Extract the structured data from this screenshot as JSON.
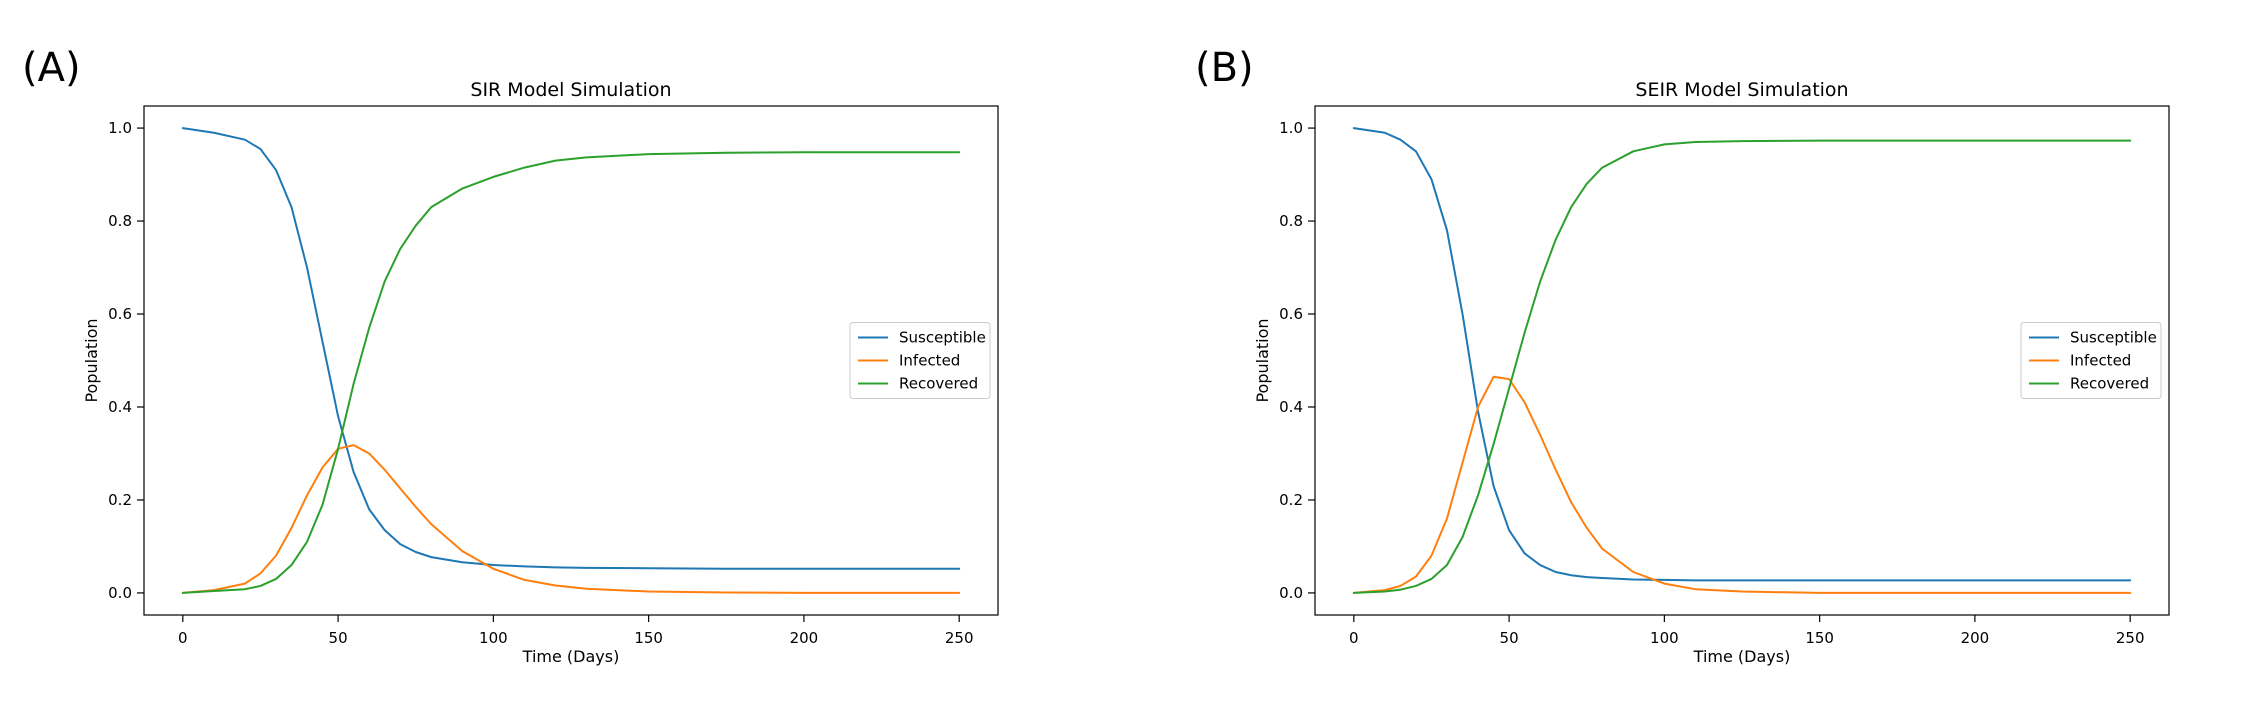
{
  "panels": [
    "(A)",
    "(B)"
  ],
  "chart_data": [
    {
      "type": "line",
      "title": "SIR Model Simulation",
      "xlabel": "Time (Days)",
      "ylabel": "Population",
      "xlim": [
        -12.5,
        262.5
      ],
      "ylim": [
        -0.0475,
        1.0475
      ],
      "xticks": [
        0,
        50,
        100,
        150,
        200,
        250
      ],
      "yticks": [
        0.0,
        0.2,
        0.4,
        0.6,
        0.8,
        1.0
      ],
      "xtick_labels": [
        "0",
        "50",
        "100",
        "150",
        "200",
        "250"
      ],
      "ytick_labels": [
        "0.0",
        "0.2",
        "0.4",
        "0.6",
        "0.8",
        "1.0"
      ],
      "grid": false,
      "legend_position": "center-right",
      "x": [
        0,
        10,
        20,
        25,
        30,
        35,
        40,
        45,
        50,
        55,
        60,
        65,
        70,
        75,
        80,
        90,
        100,
        110,
        120,
        130,
        150,
        175,
        200,
        250
      ],
      "series": [
        {
          "name": "Susceptible",
          "color": "#1f77b4",
          "values": [
            1.0,
            0.99,
            0.975,
            0.955,
            0.91,
            0.83,
            0.7,
            0.54,
            0.38,
            0.26,
            0.18,
            0.135,
            0.105,
            0.088,
            0.077,
            0.066,
            0.06,
            0.057,
            0.055,
            0.054,
            0.053,
            0.052,
            0.052,
            0.052
          ]
        },
        {
          "name": "Infected",
          "color": "#ff7f0e",
          "values": [
            0.0,
            0.006,
            0.02,
            0.042,
            0.08,
            0.14,
            0.21,
            0.27,
            0.31,
            0.318,
            0.3,
            0.265,
            0.225,
            0.185,
            0.148,
            0.09,
            0.052,
            0.028,
            0.016,
            0.009,
            0.003,
            0.001,
            0.0,
            0.0
          ]
        },
        {
          "name": "Recovered",
          "color": "#2ca02c",
          "values": [
            0.0,
            0.004,
            0.008,
            0.015,
            0.03,
            0.06,
            0.11,
            0.19,
            0.31,
            0.45,
            0.57,
            0.67,
            0.74,
            0.79,
            0.83,
            0.87,
            0.895,
            0.915,
            0.93,
            0.937,
            0.944,
            0.947,
            0.948,
            0.948
          ]
        }
      ]
    },
    {
      "type": "line",
      "title": "SEIR Model Simulation",
      "xlabel": "Time (Days)",
      "ylabel": "Population",
      "xlim": [
        -12.5,
        262.5
      ],
      "ylim": [
        -0.0475,
        1.0475
      ],
      "xticks": [
        0,
        50,
        100,
        150,
        200,
        250
      ],
      "yticks": [
        0.0,
        0.2,
        0.4,
        0.6,
        0.8,
        1.0
      ],
      "xtick_labels": [
        "0",
        "50",
        "100",
        "150",
        "200",
        "250"
      ],
      "ytick_labels": [
        "0.0",
        "0.2",
        "0.4",
        "0.6",
        "0.8",
        "1.0"
      ],
      "grid": false,
      "legend_position": "center-right",
      "x": [
        0,
        10,
        15,
        20,
        25,
        30,
        35,
        40,
        45,
        50,
        55,
        60,
        65,
        70,
        75,
        80,
        90,
        100,
        110,
        125,
        150,
        200,
        250
      ],
      "series": [
        {
          "name": "Susceptible",
          "color": "#1f77b4",
          "values": [
            1.0,
            0.99,
            0.975,
            0.95,
            0.89,
            0.78,
            0.6,
            0.39,
            0.23,
            0.135,
            0.085,
            0.06,
            0.045,
            0.038,
            0.034,
            0.032,
            0.029,
            0.028,
            0.027,
            0.027,
            0.027,
            0.027,
            0.027
          ]
        },
        {
          "name": "Infected",
          "color": "#ff7f0e",
          "values": [
            0.0,
            0.006,
            0.015,
            0.035,
            0.08,
            0.16,
            0.28,
            0.4,
            0.465,
            0.46,
            0.41,
            0.34,
            0.265,
            0.195,
            0.14,
            0.095,
            0.045,
            0.02,
            0.008,
            0.003,
            0.0,
            0.0,
            0.0
          ]
        },
        {
          "name": "Recovered",
          "color": "#2ca02c",
          "values": [
            0.0,
            0.003,
            0.007,
            0.015,
            0.03,
            0.06,
            0.12,
            0.21,
            0.32,
            0.44,
            0.56,
            0.67,
            0.76,
            0.83,
            0.88,
            0.915,
            0.95,
            0.965,
            0.97,
            0.972,
            0.973,
            0.973,
            0.973
          ]
        }
      ]
    }
  ]
}
